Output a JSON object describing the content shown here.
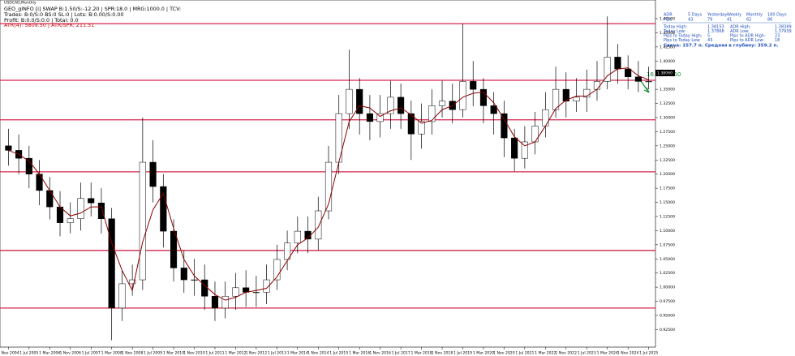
{
  "chart_data": {
    "type": "candlestick",
    "categories": [
      null,
      null,
      null,
      null,
      null,
      null,
      null,
      null,
      null,
      null,
      null,
      null,
      null,
      null,
      null,
      null,
      null,
      null,
      null,
      null,
      null,
      null,
      null,
      null,
      null,
      null,
      null,
      null,
      null,
      null,
      null,
      null,
      null,
      null,
      null,
      null,
      null,
      null,
      null,
      null,
      null,
      null,
      null,
      null,
      null,
      null,
      null,
      null,
      null,
      null,
      null,
      null,
      null,
      null,
      null,
      null,
      null,
      null,
      null,
      null,
      null,
      null,
      null
    ],
    "opens": [
      1.25,
      1.242,
      1.228,
      1.2,
      1.171,
      1.142,
      1.114,
      1.121,
      1.157,
      1.149,
      1.121,
      0.963,
      1.006,
      1.013,
      1.221,
      1.178,
      1.099,
      1.034,
      1.013,
      1.013,
      0.984,
      0.963,
      0.984,
      0.999,
      0.991,
      0.991,
      1.013,
      1.049,
      1.078,
      1.099,
      1.085,
      1.135,
      1.221,
      1.307,
      1.35,
      1.307,
      1.293,
      1.307,
      1.336,
      1.307,
      1.271,
      1.293,
      1.321,
      1.329,
      1.314,
      1.364,
      1.35,
      1.321,
      1.307,
      1.264,
      1.228,
      1.257,
      1.285,
      1.314,
      1.35,
      1.329,
      1.336,
      1.35,
      1.364,
      1.407,
      1.386,
      1.372,
      1.364
    ],
    "highs": [
      1.28,
      1.27,
      1.25,
      1.225,
      1.195,
      1.17,
      1.15,
      1.185,
      1.185,
      1.175,
      1.14,
      1.03,
      1.04,
      1.3,
      1.26,
      1.2,
      1.12,
      1.065,
      1.05,
      1.04,
      1.01,
      1.01,
      1.025,
      1.03,
      1.02,
      1.04,
      1.075,
      1.1,
      1.125,
      1.125,
      1.16,
      1.25,
      1.34,
      1.42,
      1.37,
      1.34,
      1.34,
      1.365,
      1.36,
      1.33,
      1.325,
      1.35,
      1.365,
      1.36,
      1.466,
      1.4,
      1.37,
      1.345,
      1.33,
      1.28,
      1.285,
      1.31,
      1.345,
      1.39,
      1.38,
      1.37,
      1.385,
      1.4,
      1.479,
      1.43,
      1.41,
      1.4,
      1.39
    ],
    "lows": [
      1.215,
      1.2,
      1.175,
      1.145,
      1.12,
      1.09,
      1.095,
      1.1,
      1.125,
      1.095,
      0.906,
      0.94,
      0.985,
      0.995,
      1.15,
      1.07,
      1.01,
      0.99,
      0.985,
      0.96,
      0.94,
      0.945,
      0.96,
      0.965,
      0.965,
      0.97,
      0.995,
      1.03,
      1.06,
      1.06,
      1.065,
      1.12,
      1.2,
      1.28,
      1.27,
      1.26,
      1.265,
      1.28,
      1.28,
      1.225,
      1.245,
      1.27,
      1.3,
      1.29,
      1.3,
      1.32,
      1.29,
      1.27,
      1.23,
      1.205,
      1.21,
      1.235,
      1.265,
      1.3,
      1.3,
      1.31,
      1.31,
      1.33,
      1.35,
      1.36,
      1.35,
      1.345,
      1.35
    ],
    "closes": [
      1.242,
      1.228,
      1.2,
      1.171,
      1.142,
      1.114,
      1.121,
      1.157,
      1.149,
      1.121,
      0.963,
      1.006,
      1.013,
      1.221,
      1.178,
      1.099,
      1.034,
      1.013,
      1.013,
      0.984,
      0.963,
      0.984,
      0.999,
      0.991,
      0.991,
      1.013,
      1.049,
      1.078,
      1.099,
      1.085,
      1.135,
      1.221,
      1.307,
      1.35,
      1.307,
      1.293,
      1.307,
      1.336,
      1.307,
      1.271,
      1.293,
      1.321,
      1.329,
      1.314,
      1.364,
      1.35,
      1.321,
      1.307,
      1.264,
      1.228,
      1.257,
      1.285,
      1.314,
      1.35,
      1.329,
      1.336,
      1.35,
      1.364,
      1.407,
      1.386,
      1.372,
      1.364,
      1.364
    ],
    "moving_average": {
      "color": "#8b0000",
      "values": [
        1.242,
        1.235,
        1.223,
        1.2,
        1.171,
        1.142,
        1.126,
        1.131,
        1.142,
        1.142,
        1.078,
        1.03,
        0.994,
        1.08,
        1.137,
        1.166,
        1.104,
        1.049,
        1.02,
        1.003,
        0.987,
        0.977,
        0.982,
        0.991,
        0.994,
        0.998,
        1.018,
        1.047,
        1.075,
        1.087,
        1.106,
        1.147,
        1.221,
        1.293,
        1.321,
        1.317,
        1.302,
        1.312,
        1.317,
        1.305,
        1.29,
        1.295,
        1.314,
        1.321,
        1.336,
        1.343,
        1.345,
        1.326,
        1.297,
        1.266,
        1.25,
        1.257,
        1.285,
        1.316,
        1.331,
        1.338,
        1.338,
        1.35,
        1.374,
        1.386,
        1.388,
        1.374,
        1.367
      ]
    },
    "levels": {
      "color": "#d6264b",
      "values": [
        1.466,
        1.366,
        1.296,
        1.204,
        1.065,
        0.963
      ]
    },
    "up_color": "#ffffff",
    "down_color": "#000000",
    "ylim": [
      0.894,
      1.508
    ],
    "yticks": [
      {
        "value": 0.925,
        "label": "0.92500"
      },
      {
        "value": 0.95,
        "label": "0.95000"
      },
      {
        "value": 0.975,
        "label": "0.97500"
      },
      {
        "value": 1.0,
        "label": "1.00000"
      },
      {
        "value": 1.025,
        "label": "1.02500"
      },
      {
        "value": 1.05,
        "label": "1.05000"
      },
      {
        "value": 1.075,
        "label": "1.07500"
      },
      {
        "value": 1.1,
        "label": "1.10000"
      },
      {
        "value": 1.125,
        "label": "1.12500"
      },
      {
        "value": 1.15,
        "label": "1.15000"
      },
      {
        "value": 1.175,
        "label": "1.17500"
      },
      {
        "value": 1.2,
        "label": "1.20000"
      },
      {
        "value": 1.225,
        "label": "1.22500"
      },
      {
        "value": 1.25,
        "label": "1.25000"
      },
      {
        "value": 1.275,
        "label": "1.27500"
      },
      {
        "value": 1.3,
        "label": "1.30000"
      },
      {
        "value": 1.325,
        "label": "1.32500"
      },
      {
        "value": 1.35,
        "label": "1.35000"
      },
      {
        "value": 1.375,
        "label": "1.37500"
      },
      {
        "value": 1.4,
        "label": "1.40000"
      },
      {
        "value": 1.425,
        "label": "1.42500"
      },
      {
        "value": 1.45,
        "label": "1.45000"
      },
      {
        "value": 1.475,
        "label": "1.47500"
      }
    ],
    "xticks": [
      {
        "value": 0,
        "label": "1 Nov 2004"
      },
      {
        "value": 2,
        "label": "1 Jul 2005"
      },
      {
        "value": 4,
        "label": "1 Mar 2006"
      },
      {
        "value": 6,
        "label": "1 Nov 2006"
      },
      {
        "value": 8,
        "label": "1 Jul 2007"
      },
      {
        "value": 10,
        "label": "1 Mar 2008"
      },
      {
        "value": 12,
        "label": "1 Nov 2008"
      },
      {
        "value": 14,
        "label": "1 Jul 2009"
      },
      {
        "value": 16,
        "label": "1 Mar 2010"
      },
      {
        "value": 18,
        "label": "1 Nov 2010"
      },
      {
        "value": 20,
        "label": "1 Jul 2011"
      },
      {
        "value": 22,
        "label": "1 Mar 2012"
      },
      {
        "value": 24,
        "label": "1 Nov 2012"
      },
      {
        "value": 26,
        "label": "1 Jul 2013"
      },
      {
        "value": 28,
        "label": "1 Mar 2014"
      },
      {
        "value": 30,
        "label": "1 Nov 2014"
      },
      {
        "value": 32,
        "label": "1 Jul 2015"
      },
      {
        "value": 34,
        "label": "1 Mar 2016"
      },
      {
        "value": 36,
        "label": "1 Nov 2016"
      },
      {
        "value": 38,
        "label": "1 Jul 2017"
      },
      {
        "value": 40,
        "label": "1 Mar 2018"
      },
      {
        "value": 42,
        "label": "1 Nov 2018"
      },
      {
        "value": 44,
        "label": "1 Jul 2019"
      },
      {
        "value": 46,
        "label": "1 Mar 2020"
      },
      {
        "value": 48,
        "label": "1 Nov 2020"
      },
      {
        "value": 50,
        "label": "1 Jul 2021"
      },
      {
        "value": 52,
        "label": "1 Mar 2022"
      },
      {
        "value": 54,
        "label": "1 Nov 2022"
      },
      {
        "value": 56,
        "label": "1 Jul 2023"
      },
      {
        "value": 58,
        "label": "1 Mar 2024"
      },
      {
        "value": 60,
        "label": "1 Nov 2024"
      },
      {
        "value": 62,
        "label": "1 Jul 2025"
      }
    ]
  },
  "symbol": "USDCAD,Monthly",
  "info_lines": [
    "GEO_gINFO [i] SWAP B:1.50/S:-12.20 | SPR:18.0 | MRG:1000.0 | TCV:",
    "Trades: B:0/S:0 BS:0 SL:0 | Lots: B:0.00/S:0.00",
    "Profit: B:0.0/S:0.0 | Total: 0.0"
  ],
  "atr_line": "ATR(4): 5809.50 | ATR/SPR: 211.31",
  "adr_table": {
    "header": [
      "ADR",
      "5 Days",
      "Yesterday",
      "Weekly",
      "Monthly",
      "180 Days"
    ],
    "pips": [
      "Pips",
      "43",
      "79",
      "41",
      "62",
      "86"
    ],
    "rows": [
      [
        "Today High:",
        "1.38153",
        "ADR High:",
        "1.38389"
      ],
      [
        "Today Low:",
        "1.37868",
        "ADR Low:",
        "1.37939"
      ],
      [
        "Pips to Today High:",
        "5",
        "Pips to ADR High:",
        "23"
      ],
      [
        "Pips to Today Low:",
        "43",
        "Pips to ADR Low:",
        "18"
      ]
    ],
    "footer": "Свеча: 157.7 п. Средняя в глубину: 359.2 п."
  },
  "timer": "16 04 57 50",
  "current_price": "1.38060"
}
